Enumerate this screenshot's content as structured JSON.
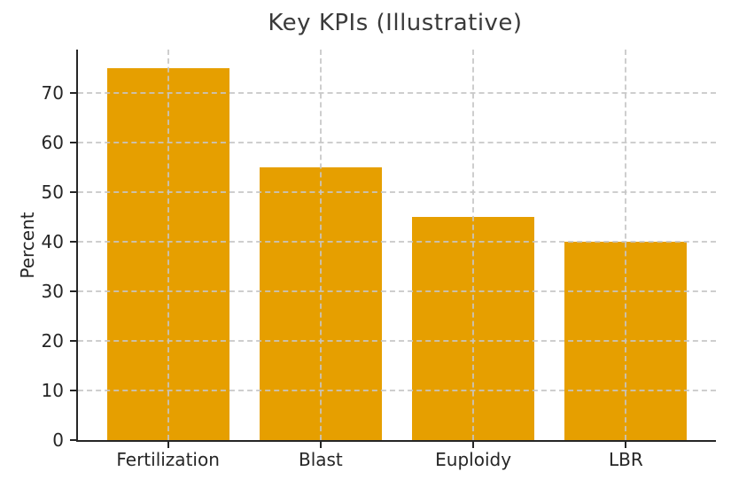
{
  "chart_data": {
    "type": "bar",
    "title": "Key KPIs (Illustrative)",
    "categories": [
      "Fertilization",
      "Blast",
      "Euploidy",
      "LBR"
    ],
    "values": [
      75,
      55,
      45,
      40
    ],
    "xlabel": "",
    "ylabel": "Percent",
    "yticks": [
      0,
      10,
      20,
      30,
      40,
      50,
      60,
      70
    ],
    "ylim": [
      0,
      78.75
    ],
    "legend": "none",
    "grid": "on",
    "grid_style": "dashed",
    "bar_width_fraction": 0.8,
    "x_margin_fraction": 0.05,
    "colors": {
      "bar": "#E69F00",
      "grid": "#c6c6c6",
      "spine": "#262626",
      "tick_text": "#262626",
      "title_text": "#3a3a3a",
      "background": "#ffffff"
    }
  }
}
